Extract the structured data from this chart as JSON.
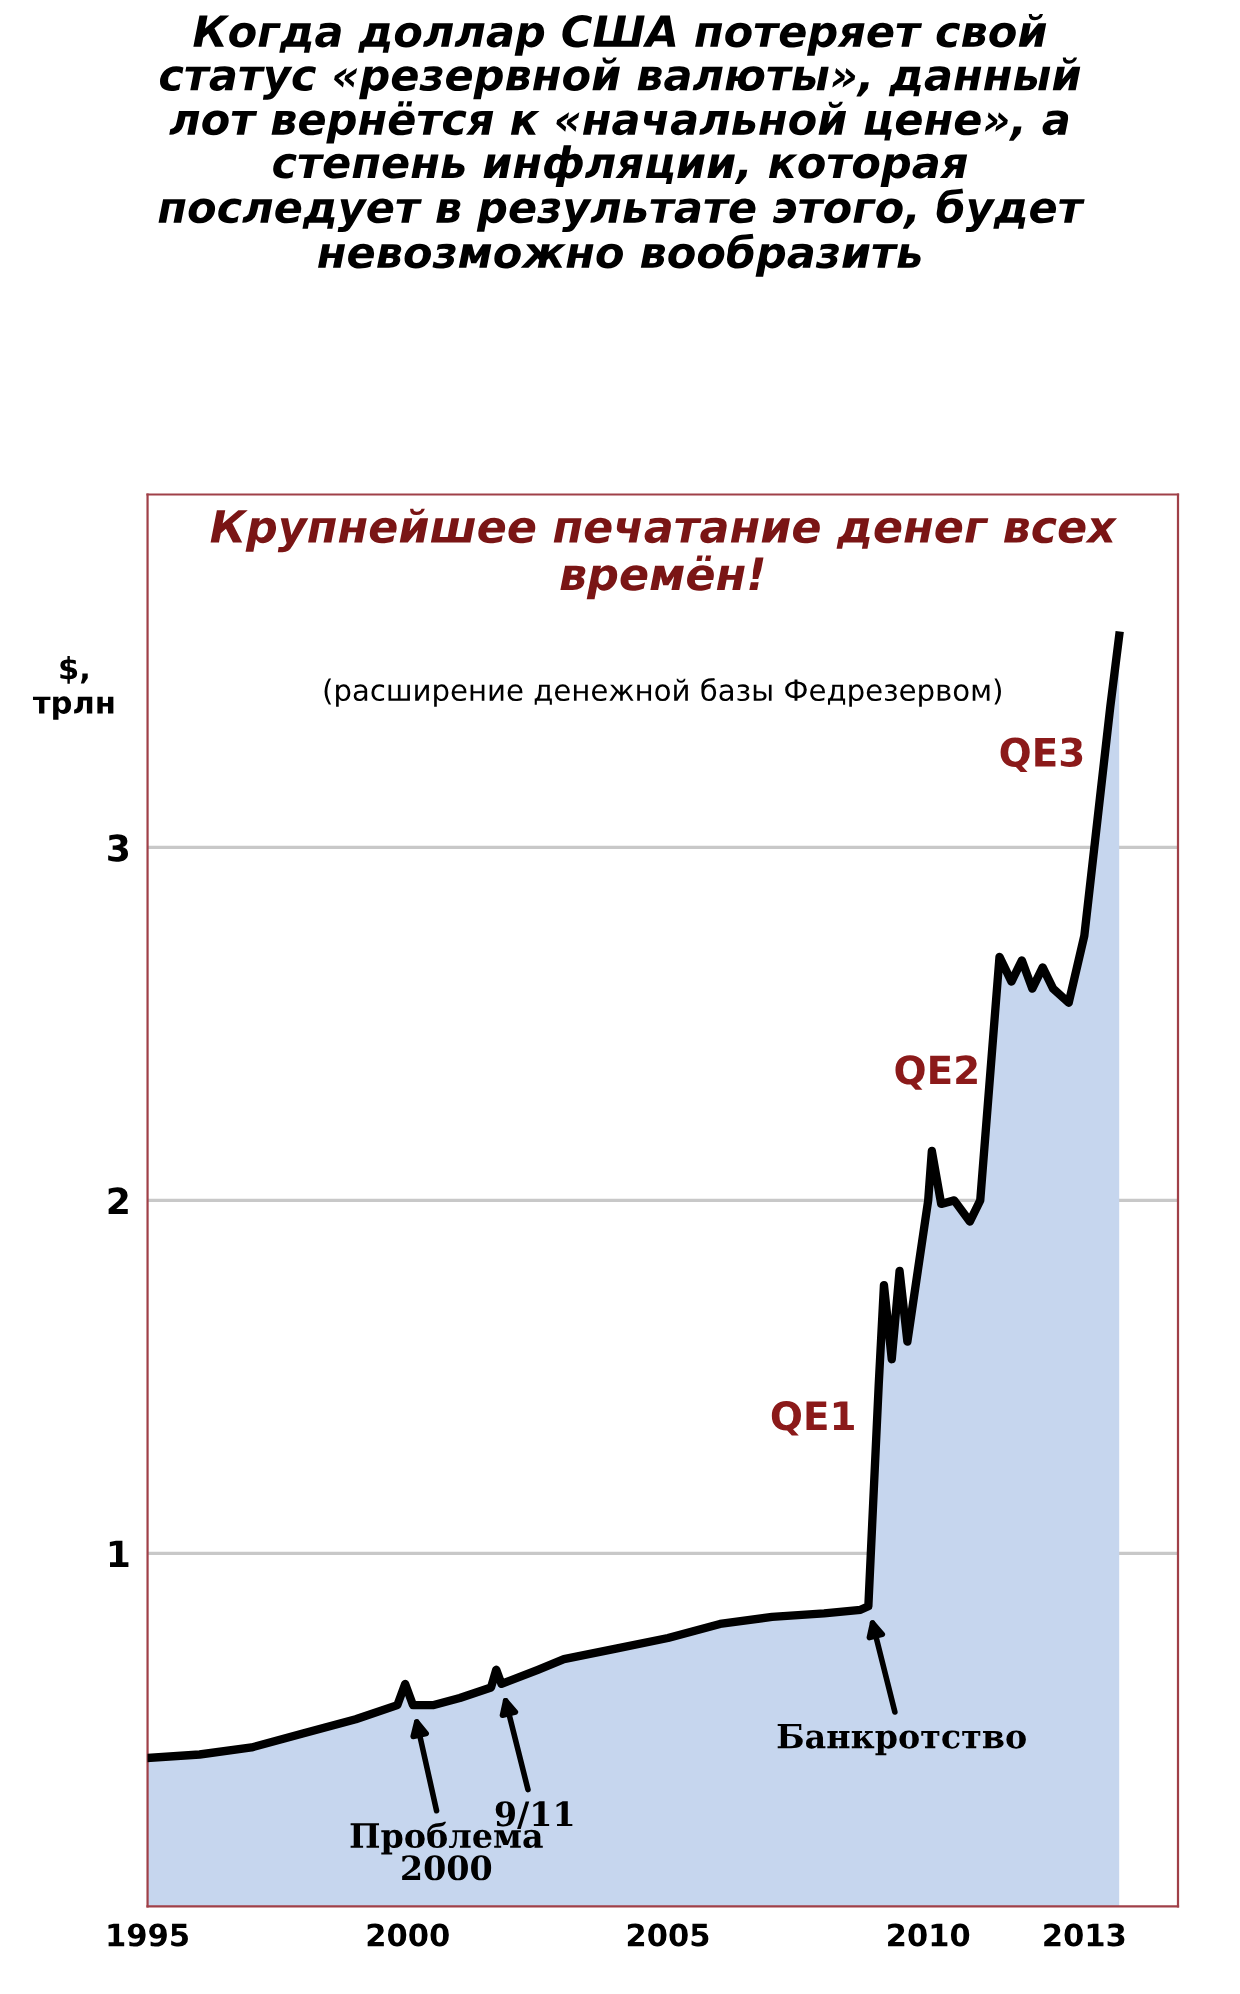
{
  "chart_data": {
    "type": "area",
    "title": "Когда доллар США потеряет свой\nстатус «резервной валюты», данный\nлот вернётся к «начальной цене», а\nстепень инфляции, которая\nпоследует в результате этого, будет\nневозможно вообразить",
    "subtitle": "Крупнейшее печатание денег всех\nвремён!",
    "ylabel": "$,\nтрлн",
    "x": [
      1995.0,
      1996.0,
      1997.0,
      1998.0,
      1999.0,
      1999.8,
      1999.95,
      2000.1,
      2000.5,
      2001.0,
      2001.6,
      2001.7,
      2001.8,
      2002.5,
      2003.0,
      2004.0,
      2005.0,
      2006.0,
      2007.0,
      2008.0,
      2008.7,
      2008.85,
      2009.05,
      2009.15,
      2009.3,
      2009.45,
      2009.6,
      2009.8,
      2010.0,
      2010.07,
      2010.25,
      2010.5,
      2010.8,
      2011.0,
      2011.37,
      2011.6,
      2011.8,
      2012.0,
      2012.2,
      2012.4,
      2012.7,
      2013.0,
      2013.3,
      2013.5,
      2013.67
    ],
    "series": [
      {
        "color": "#c6d6ee",
        "values": [
          0.42,
          0.43,
          0.45,
          0.49,
          0.53,
          0.57,
          0.63,
          0.57,
          0.57,
          0.59,
          0.62,
          0.67,
          0.63,
          0.67,
          0.7,
          0.73,
          0.76,
          0.8,
          0.82,
          0.83,
          0.84,
          0.85,
          1.48,
          1.76,
          1.55,
          1.8,
          1.6,
          1.8,
          2.0,
          2.14,
          1.99,
          2.0,
          1.94,
          2.0,
          2.69,
          2.62,
          2.68,
          2.6,
          2.66,
          2.6,
          2.56,
          2.75,
          3.14,
          3.4,
          3.6
        ]
      }
    ],
    "xlim": [
      1995,
      2014.8
    ],
    "xticks": [
      1995,
      2000,
      2005,
      2010,
      2013
    ],
    "ylim": [
      0,
      4
    ],
    "yticks": [
      1,
      2,
      3
    ],
    "grid": "y",
    "annotations": [
      "(расширение денежной базы Федрезервом)",
      "QE1",
      "QE2",
      "QE3",
      {
        "text": "Проблема\n2000",
        "x": 2000.1,
        "y": 0.57
      },
      {
        "text": "9/11",
        "x": 2001.8,
        "y": 0.63
      },
      {
        "text": "Банкротство",
        "x": 2008.85,
        "y": 0.85
      }
    ]
  }
}
